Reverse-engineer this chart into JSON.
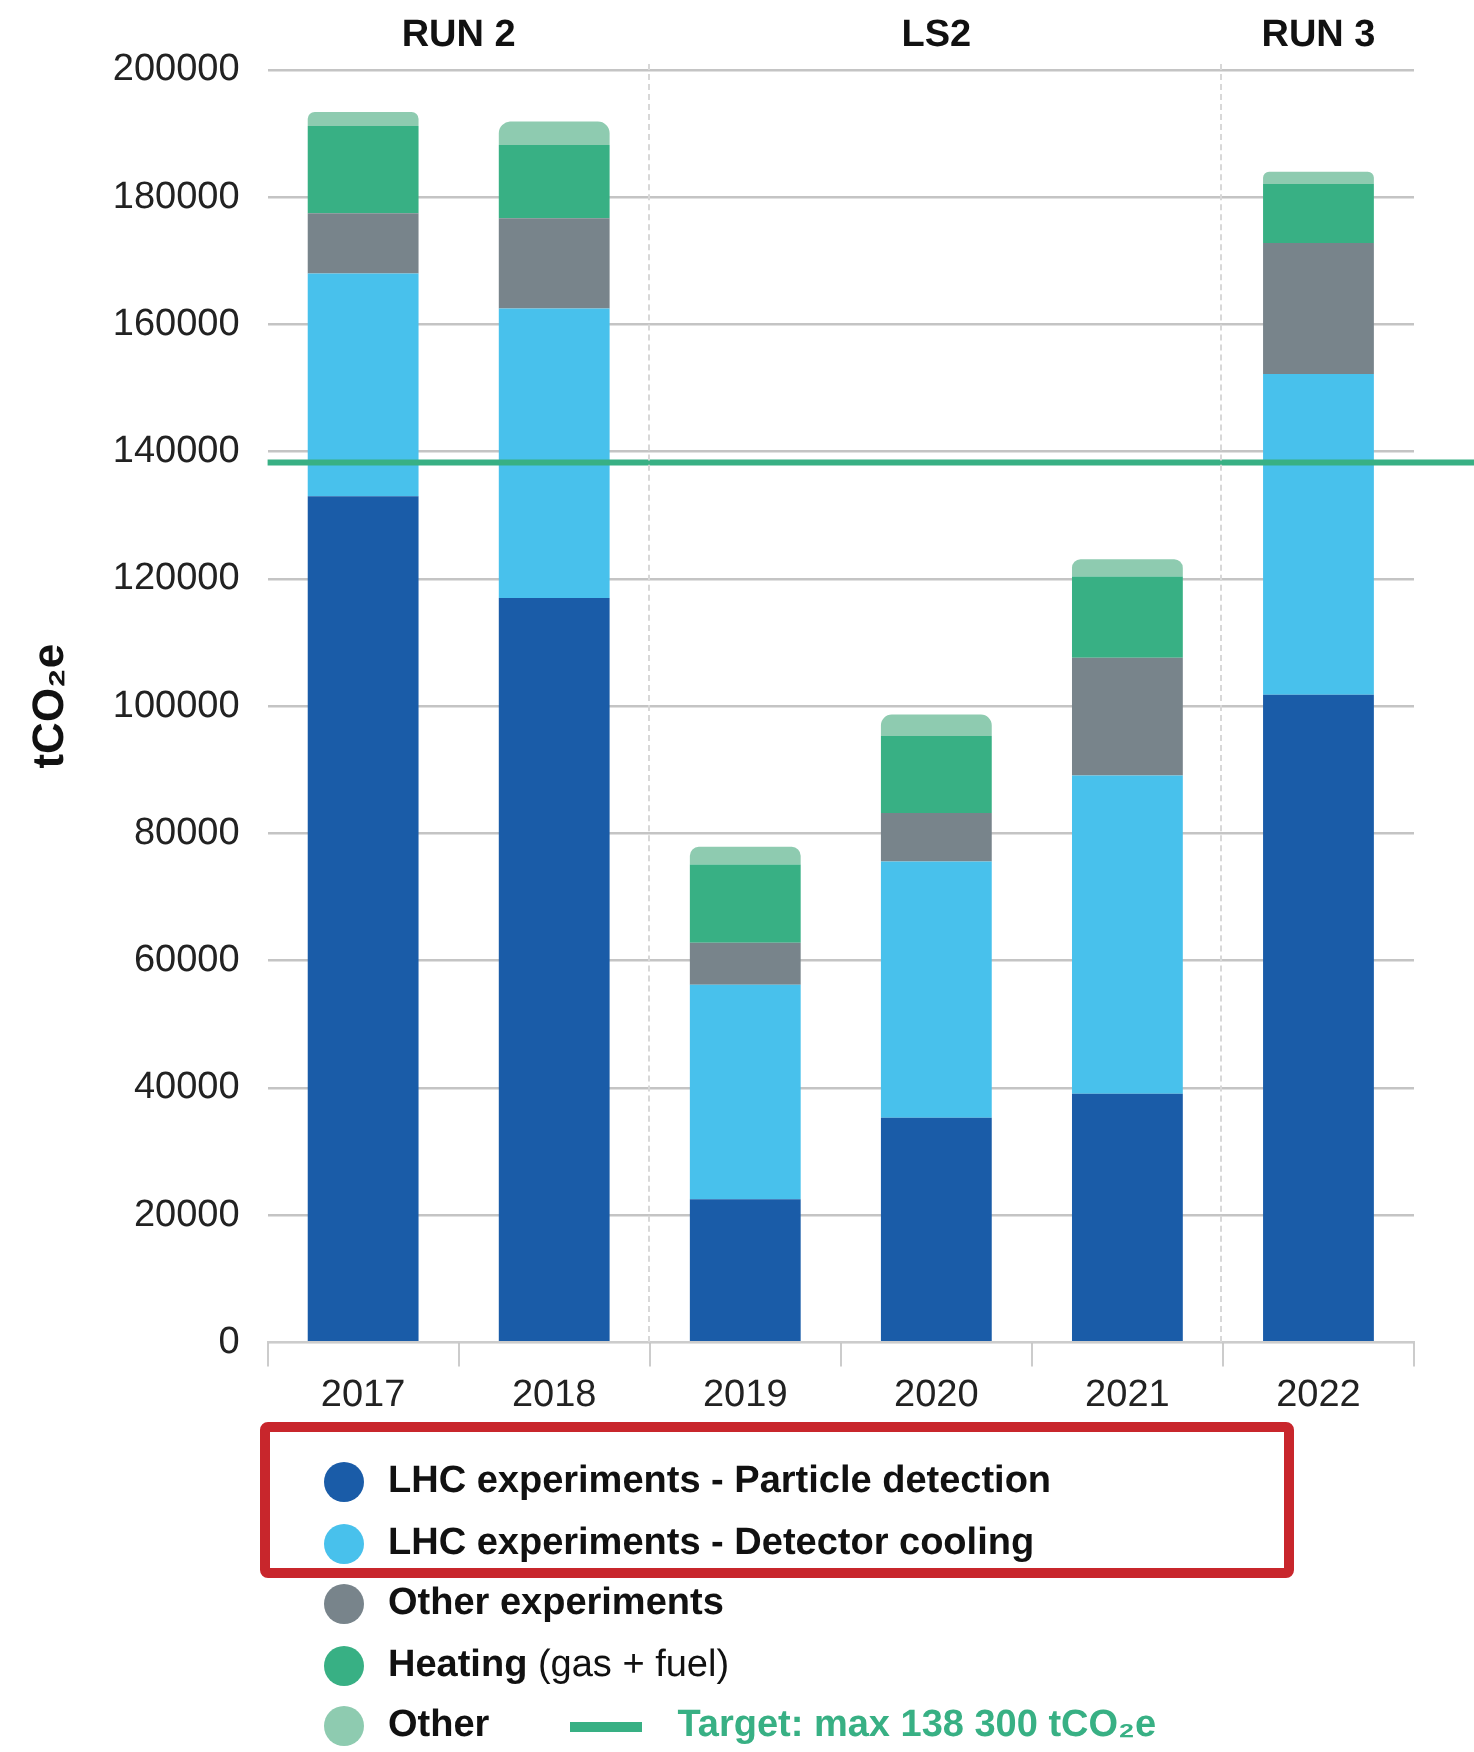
{
  "chart_data": {
    "type": "bar",
    "stacked": true,
    "ylabel": "tCO₂e",
    "categories": [
      "2017",
      "2018",
      "2019",
      "2020",
      "2021",
      "2022"
    ],
    "series": [
      {
        "name": "LHC experiments - Particle detection",
        "color": "#1a5ca8",
        "values": [
          133000,
          117000,
          22500,
          35300,
          39100,
          101800
        ]
      },
      {
        "name": "LHC experiments - Detector cooling",
        "color": "#48c1ec",
        "values": [
          35000,
          45500,
          33700,
          40300,
          50000,
          50400
        ]
      },
      {
        "name": "Other experiments",
        "color": "#78848b",
        "values": [
          9500,
          14200,
          6600,
          7600,
          18500,
          20600
        ]
      },
      {
        "name": "Heating (gas + fuel)",
        "color": "#38b084",
        "values": [
          13700,
          11500,
          12300,
          12100,
          12800,
          9300
        ]
      },
      {
        "name": "Other",
        "color": "#8ecbb0",
        "values": [
          2200,
          3700,
          2800,
          3400,
          2700,
          1900
        ]
      }
    ],
    "ylim": [
      0,
      200000
    ],
    "yticks": [
      0,
      20000,
      40000,
      60000,
      80000,
      100000,
      120000,
      140000,
      160000,
      180000,
      200000
    ],
    "grid": "y",
    "legend": "bottom",
    "ref_lines": [
      {
        "axis": "y",
        "value": 138300,
        "label": "Target: max 138 300 tCO₂e",
        "color": "#38b084"
      }
    ],
    "annotations": [
      "RUN 2",
      "LS2",
      "RUN 3"
    ]
  }
}
